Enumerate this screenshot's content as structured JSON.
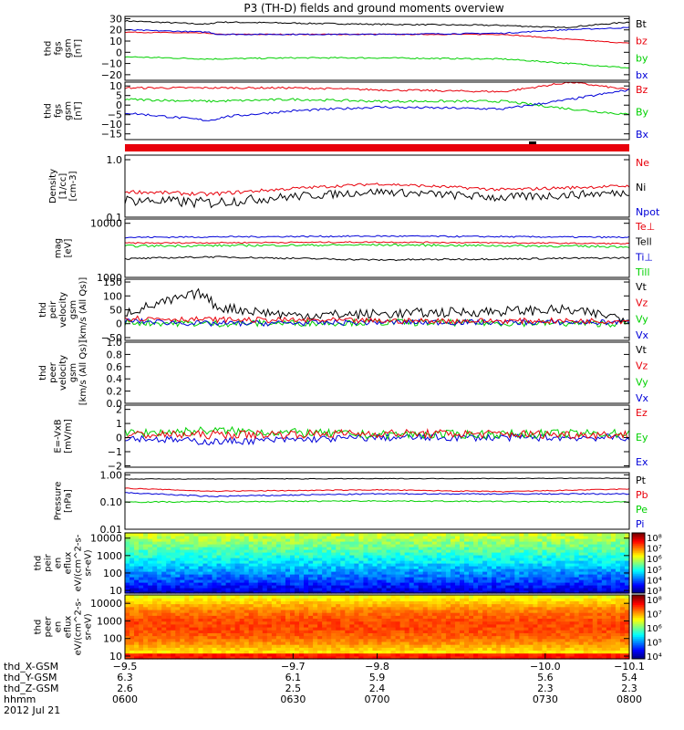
{
  "title": "P3 (TH-D) fields and ground moments overview",
  "colors": {
    "black": "#000000",
    "red": "#e8000b",
    "green": "#00d000",
    "blue": "#0000d8"
  },
  "chart_data": [
    {
      "type": "line",
      "ylabel": [
        "thd",
        "fgs",
        "gsm",
        "[nT]"
      ],
      "ylim": [
        -25,
        32
      ],
      "ticks": [
        {
          "v": 30,
          "t": "30"
        },
        {
          "v": 20,
          "t": "20"
        },
        {
          "v": 10,
          "t": "10"
        },
        {
          "v": 0,
          "t": "0"
        },
        {
          "v": -10,
          "t": "−10"
        },
        {
          "v": -20,
          "t": "−20"
        }
      ],
      "legend": [
        {
          "label": "Bt",
          "color": "black"
        },
        {
          "label": "bz",
          "color": "red"
        },
        {
          "label": "by",
          "color": "green"
        },
        {
          "label": "bx",
          "color": "blue"
        }
      ],
      "series": [
        {
          "name": "Bt",
          "color": "black",
          "noise": 0.6,
          "x": [
            -9.5,
            -9.6,
            -9.61,
            -9.7,
            -9.8,
            -9.95,
            -10.02,
            -10.1
          ],
          "y": [
            28,
            25,
            27,
            26,
            25,
            24,
            22,
            27
          ]
        },
        {
          "name": "bz",
          "color": "red",
          "noise": 0.4,
          "x": [
            -9.5,
            -9.6,
            -9.61,
            -9.7,
            -9.8,
            -9.95,
            -10.02,
            -10.1
          ],
          "y": [
            18,
            17,
            16,
            16,
            16,
            16,
            12,
            8
          ]
        },
        {
          "name": "by",
          "color": "green",
          "noise": 0.6,
          "x": [
            -9.5,
            -9.6,
            -9.7,
            -9.8,
            -9.95,
            -10.03,
            -10.1
          ],
          "y": [
            -4,
            -6,
            -5,
            -5,
            -6,
            -10,
            -14
          ]
        },
        {
          "name": "bx",
          "color": "blue",
          "noise": 0.5,
          "x": [
            -9.5,
            -9.6,
            -9.61,
            -9.7,
            -9.8,
            -9.95,
            -10.02,
            -10.1
          ],
          "y": [
            20,
            18,
            16,
            16,
            16,
            17,
            20,
            22
          ]
        }
      ]
    },
    {
      "type": "line",
      "ylabel": [
        "thd",
        "fgs",
        "gsm",
        "[nT]"
      ],
      "ylim": [
        -18,
        12
      ],
      "ticks": [
        {
          "v": 10,
          "t": "10"
        },
        {
          "v": 5,
          "t": "5"
        },
        {
          "v": 0,
          "t": "0"
        },
        {
          "v": -5,
          "t": "−5"
        },
        {
          "v": -10,
          "t": "−10"
        },
        {
          "v": -15,
          "t": "−15"
        }
      ],
      "legend": [
        {
          "label": "Bz",
          "color": "red"
        },
        {
          "label": "By",
          "color": "green"
        },
        {
          "label": "Bx",
          "color": "blue"
        }
      ],
      "series": [
        {
          "name": "Bz",
          "color": "red",
          "noise": 0.5,
          "x": [
            -9.5,
            -9.6,
            -9.7,
            -9.8,
            -9.95,
            -10.03,
            -10.1
          ],
          "y": [
            9,
            9,
            9,
            8,
            7,
            12,
            8
          ]
        },
        {
          "name": "By",
          "color": "green",
          "noise": 0.6,
          "x": [
            -9.5,
            -9.6,
            -9.7,
            -9.8,
            -9.95,
            -10.03,
            -10.1
          ],
          "y": [
            3,
            2,
            3,
            2,
            2,
            -2,
            -5
          ]
        },
        {
          "name": "Bx",
          "color": "blue",
          "noise": 0.6,
          "x": [
            -9.5,
            -9.6,
            -9.62,
            -9.7,
            -9.8,
            -9.95,
            -10.03,
            -10.1
          ],
          "y": [
            -4,
            -8,
            -6,
            -3,
            -1,
            -2,
            3,
            8
          ]
        }
      ]
    },
    {
      "type": "line",
      "yscale": "log",
      "ylabel": [
        "Density",
        "[1/cc]",
        "[cm-3]"
      ],
      "ylim": [
        0.1,
        1.2
      ],
      "ticks": [
        {
          "v": 1.0,
          "t": "1.0"
        },
        {
          "v": 0.1,
          "t": "0.1"
        }
      ],
      "legend": [
        {
          "label": "Ne",
          "color": "red"
        },
        {
          "label": "Ni",
          "color": "black"
        },
        {
          "label": "Npot",
          "color": "blue"
        }
      ],
      "series": [
        {
          "name": "Ne",
          "color": "red",
          "noise": 0.02,
          "x": [
            -9.5,
            -9.6,
            -9.8,
            -9.95,
            -10.1
          ],
          "y": [
            0.28,
            0.25,
            0.38,
            0.3,
            0.35
          ]
        },
        {
          "name": "Ni",
          "color": "black",
          "noise": 0.04,
          "x": [
            -9.5,
            -9.6,
            -9.8,
            -9.95,
            -10.1
          ],
          "y": [
            0.2,
            0.18,
            0.28,
            0.22,
            0.27
          ]
        }
      ]
    },
    {
      "type": "line",
      "yscale": "log",
      "ylabel": [
        "mag",
        "[eV]"
      ],
      "ylim": [
        1000,
        12000
      ],
      "ticks": [
        {
          "v": 10000,
          "t": "10000"
        },
        {
          "v": 1000,
          "t": "1000"
        }
      ],
      "legend": [
        {
          "label": "Te⊥",
          "color": "red"
        },
        {
          "label": "Tell",
          "color": "black"
        },
        {
          "label": "Ti⊥",
          "color": "blue"
        },
        {
          "label": "Till",
          "color": "green"
        }
      ],
      "series": [
        {
          "name": "Ti⊥",
          "color": "blue",
          "noise": 180,
          "x": [
            -9.5,
            -9.8,
            -10.1
          ],
          "y": [
            5500,
            5800,
            5500
          ]
        },
        {
          "name": "Te⊥",
          "color": "red",
          "noise": 120,
          "x": [
            -9.5,
            -9.8,
            -10.1
          ],
          "y": [
            4300,
            4500,
            4200
          ]
        },
        {
          "name": "Till",
          "color": "green",
          "noise": 180,
          "x": [
            -9.5,
            -9.8,
            -10.1
          ],
          "y": [
            3800,
            4000,
            3700
          ]
        },
        {
          "name": "Tell",
          "color": "black",
          "noise": 80,
          "x": [
            -9.5,
            -9.6,
            -9.8,
            -10.1
          ],
          "y": [
            2200,
            2400,
            2100,
            2300
          ]
        }
      ]
    },
    {
      "type": "line",
      "ylabel": [
        "thd",
        "peir",
        "velocity",
        "gsm",
        "[km/s (All Qs)]"
      ],
      "ylim": [
        -60,
        160
      ],
      "ticks": [
        {
          "v": 150,
          "t": "150"
        },
        {
          "v": 100,
          "t": "100"
        },
        {
          "v": 50,
          "t": "50"
        },
        {
          "v": 0,
          "t": "0"
        },
        {
          "v": -50,
          "t": "−50"
        }
      ],
      "legend": [
        {
          "label": "Vt",
          "color": "black"
        },
        {
          "label": "Vz",
          "color": "red"
        },
        {
          "label": "Vy",
          "color": "green"
        },
        {
          "label": "Vx",
          "color": "blue"
        }
      ],
      "series": [
        {
          "name": "Vy",
          "color": "green",
          "noise": 12,
          "x": [
            -9.5,
            -9.6,
            -9.8,
            -10.1
          ],
          "y": [
            5,
            0,
            5,
            0
          ]
        },
        {
          "name": "Vx",
          "color": "blue",
          "noise": 10,
          "x": [
            -9.5,
            -9.6,
            -9.8,
            -10.1
          ],
          "y": [
            10,
            0,
            5,
            5
          ]
        },
        {
          "name": "Vt",
          "color": "black",
          "noise": 18,
          "x": [
            -9.5,
            -9.59,
            -9.61,
            -9.7,
            -9.8,
            -10.02,
            -10.1
          ],
          "y": [
            40,
            110,
            60,
            30,
            35,
            50,
            20
          ]
        },
        {
          "name": "Vz",
          "color": "red",
          "noise": 10,
          "x": [
            -9.5,
            -9.6,
            -9.8,
            -10.1
          ],
          "y": [
            20,
            15,
            10,
            10
          ]
        }
      ]
    },
    {
      "type": "line",
      "ylabel": [
        "thd",
        "peer",
        "velocity",
        "gsm",
        "[km/s (All Qs)]"
      ],
      "ylim": [
        0,
        1
      ],
      "ticks": [
        {
          "v": 1.0,
          "t": "1.0"
        },
        {
          "v": 0.8,
          "t": "0.8"
        },
        {
          "v": 0.6,
          "t": "0.6"
        },
        {
          "v": 0.4,
          "t": "0.4"
        },
        {
          "v": 0.2,
          "t": "0.2"
        },
        {
          "v": 0.0,
          "t": "0.0"
        }
      ],
      "legend": [
        {
          "label": "Vt",
          "color": "black"
        },
        {
          "label": "Vz",
          "color": "red"
        },
        {
          "label": "Vy",
          "color": "green"
        },
        {
          "label": "Vx",
          "color": "blue"
        }
      ],
      "series": []
    },
    {
      "type": "line",
      "ylabel": [
        "E=-VxB",
        "[mV/m]"
      ],
      "ylim": [
        -2.1,
        2.3
      ],
      "ticks": [
        {
          "v": 2,
          "t": "2"
        },
        {
          "v": 1,
          "t": "1"
        },
        {
          "v": 0,
          "t": "0"
        },
        {
          "v": -1,
          "t": "−1"
        },
        {
          "v": -2,
          "t": "−2"
        }
      ],
      "legend": [
        {
          "label": "Ez",
          "color": "red"
        },
        {
          "label": "Ey",
          "color": "green"
        },
        {
          "label": "Ex",
          "color": "blue"
        }
      ],
      "series": [
        {
          "name": "Ex",
          "color": "blue",
          "noise": 0.25,
          "x": [
            -9.5,
            -9.6,
            -9.8,
            -10.1
          ],
          "y": [
            0,
            -0.3,
            0,
            0
          ]
        },
        {
          "name": "Ey",
          "color": "green",
          "noise": 0.3,
          "x": [
            -9.5,
            -9.6,
            -9.8,
            -10.1
          ],
          "y": [
            0.3,
            0.5,
            0.2,
            0.3
          ]
        },
        {
          "name": "Ez",
          "color": "red",
          "noise": 0.3,
          "x": [
            -9.5,
            -9.6,
            -9.8,
            -10.1
          ],
          "y": [
            0.2,
            0.2,
            0.3,
            0.2
          ]
        }
      ]
    },
    {
      "type": "line",
      "yscale": "log",
      "ylabel": [
        "Pressure",
        "[nPa]"
      ],
      "ylim": [
        0.01,
        1.2
      ],
      "ticks": [
        {
          "v": 1.0,
          "t": "1.00"
        },
        {
          "v": 0.1,
          "t": "0.10"
        },
        {
          "v": 0.01,
          "t": "0.01"
        }
      ],
      "legend": [
        {
          "label": "Pt",
          "color": "black"
        },
        {
          "label": "Pb",
          "color": "red"
        },
        {
          "label": "Pe",
          "color": "green"
        },
        {
          "label": "Pi",
          "color": "blue"
        }
      ],
      "series": [
        {
          "name": "Pt",
          "color": "black",
          "noise": 0.02,
          "x": [
            -9.5,
            -9.8,
            -10.1
          ],
          "y": [
            0.7,
            0.72,
            0.75
          ]
        },
        {
          "name": "Pb",
          "color": "red",
          "noise": 0.01,
          "x": [
            -9.5,
            -9.6,
            -9.8,
            -9.95,
            -10.1
          ],
          "y": [
            0.32,
            0.25,
            0.28,
            0.24,
            0.3
          ]
        },
        {
          "name": "Pi",
          "color": "blue",
          "noise": 0.01,
          "x": [
            -9.5,
            -9.6,
            -9.8,
            -10.1
          ],
          "y": [
            0.22,
            0.16,
            0.2,
            0.2
          ]
        },
        {
          "name": "Pe",
          "color": "green",
          "noise": 0.005,
          "x": [
            -9.5,
            -9.8,
            -10.1
          ],
          "y": [
            0.1,
            0.11,
            0.1
          ]
        }
      ]
    },
    {
      "type": "heatmap",
      "yscale": "log",
      "ylabel": [
        "thd",
        "peir",
        "en",
        "eflux",
        "eV/(cm^2-s-",
        "sr-eV)"
      ],
      "ylim": [
        7,
        20000
      ],
      "ticks": [
        {
          "v": 10000,
          "t": "10000"
        },
        {
          "v": 1000,
          "t": "1000"
        },
        {
          "v": 100,
          "t": "100"
        },
        {
          "v": 10,
          "t": "10"
        }
      ],
      "colorbar": {
        "min_exp": 3,
        "max_exp": 8,
        "labels": [
          "10⁸",
          "10⁷",
          "10⁶",
          "10⁵",
          "10⁴",
          "10³"
        ]
      }
    },
    {
      "type": "heatmap",
      "yscale": "log",
      "ylabel": [
        "thd",
        "peer",
        "en",
        "eflux",
        "eV/(cm^2-s-",
        "sr-eV)"
      ],
      "ylim": [
        7,
        30000
      ],
      "ticks": [
        {
          "v": 10000,
          "t": "10000"
        },
        {
          "v": 1000,
          "t": "1000"
        },
        {
          "v": 100,
          "t": "100"
        },
        {
          "v": 10,
          "t": "10"
        }
      ],
      "colorbar": {
        "min_exp": 3.5,
        "max_exp": 8.3,
        "labels": [
          "10⁸",
          "10⁷",
          "10⁶",
          "10⁵",
          "10⁴"
        ]
      }
    }
  ],
  "xaxis": {
    "xlim": [
      -9.5,
      -10.1
    ],
    "tick_values": [
      -9.5,
      -9.7,
      -9.8,
      -10.0,
      -10.1
    ],
    "rows": [
      {
        "label": "thd_X-GSM",
        "values": [
          "−9.5",
          "−9.7",
          "−9.8",
          "−10.0",
          "−10.1"
        ]
      },
      {
        "label": "thd_Y-GSM",
        "values": [
          "6.3",
          "6.1",
          "5.9",
          "5.6",
          "5.4"
        ]
      },
      {
        "label": "thd_Z-GSM",
        "values": [
          "2.6",
          "2.5",
          "2.4",
          "2.3",
          "2.3"
        ]
      },
      {
        "label": "hhmm",
        "values": [
          "0600",
          "0630",
          "0700",
          "0730",
          "0800"
        ]
      }
    ],
    "date": "2012 Jul 21"
  }
}
